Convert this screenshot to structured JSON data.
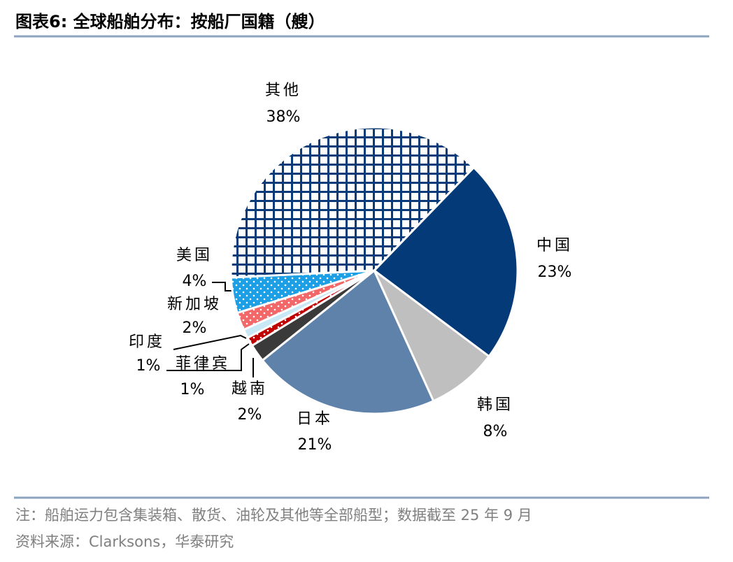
{
  "chart_data": {
    "type": "pie",
    "title": "图表6:  全球船舶分布：按船厂国籍（艘）",
    "categories": [
      "中国",
      "韩国",
      "日本",
      "越南",
      "菲律宾",
      "印度",
      "新加坡",
      "美国",
      "其他"
    ],
    "values": [
      23,
      8,
      21,
      2,
      1,
      1,
      2,
      4,
      38
    ],
    "value_labels": [
      "23%",
      "8%",
      "21%",
      "2%",
      "1%",
      "1%",
      "2%",
      "4%",
      "38%"
    ],
    "colors": [
      "#043a78",
      "#bfbfbf",
      "#5f82aa",
      "#3a3a3a",
      "#c00000",
      "#c8e8f6",
      "#f26868",
      "#1c9fe4",
      "#0a3a78"
    ],
    "patterns": [
      "solid",
      "solid",
      "solid",
      "solid",
      "dots",
      "solid",
      "dots",
      "dots",
      "crosshatch"
    ],
    "note": "注：船舶运力包含集装箱、散货、油轮及其他等全部船型；数据截至 25 年 9 月",
    "source": "资料来源：Clarksons，华泰研究"
  }
}
